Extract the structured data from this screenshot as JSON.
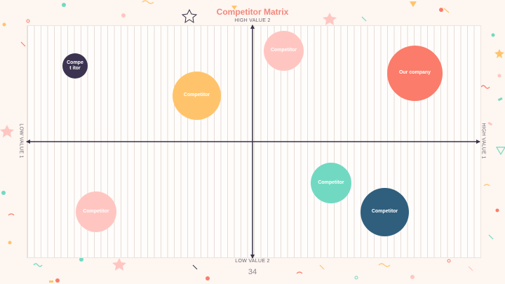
{
  "slide": {
    "title": "Competitor Matrix",
    "page_number": "34",
    "axes": {
      "top": "HIGH VALUE 2",
      "bottom": "LOW VALUE 2",
      "left": "LOW VALUE 1",
      "right": "HIGH VALUE 1"
    },
    "colors": {
      "title": "#f2877b",
      "axis": "#3a3247",
      "navy": "#3b3350",
      "pink": "#ffc6c1",
      "orange": "#ffc46b",
      "coral": "#fb7c6a",
      "mint": "#71d9c2",
      "teal": "#2f5f7d"
    },
    "bubbles": [
      {
        "label": "Compet itor",
        "color": "#3b3350"
      },
      {
        "label": "Competitor",
        "color": "#ffc6c1"
      },
      {
        "label": "Competitor",
        "color": "#ffc46b"
      },
      {
        "label": "Our company",
        "color": "#fb7c6a"
      },
      {
        "label": "Competitor",
        "color": "#71d9c2"
      },
      {
        "label": "Competitor",
        "color": "#2f5f7d"
      },
      {
        "label": "Competitor",
        "color": "#ffc6c1"
      }
    ]
  }
}
